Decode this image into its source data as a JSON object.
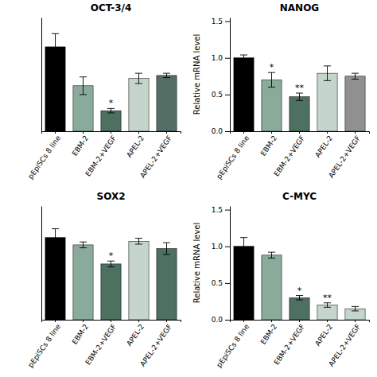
{
  "chart_data": [
    {
      "type": "bar",
      "title": "OCT-3/4",
      "categories": [
        "pEpiSCs 8 line",
        "EBM-2",
        "EBM-2+VEGF",
        "APEL-2",
        "APEL-2+VEGF"
      ],
      "values": [
        1.15,
        0.62,
        0.28,
        0.72,
        0.76
      ],
      "errors": [
        0.18,
        0.12,
        0.03,
        0.07,
        0.03
      ],
      "colors": [
        "#000000",
        "#8aab9b",
        "#4d7060",
        "#c5d5cb",
        "#546e65"
      ],
      "sig_labels": [
        null,
        null,
        "*",
        null,
        null
      ],
      "ylim": [
        0,
        1.55
      ],
      "yticks": [],
      "tick_labels": "x",
      "grid": false
    },
    {
      "type": "bar",
      "title": "NANOG",
      "ylabel": "Relative mRNA level",
      "categories": [
        "pEpiSCs 8 line",
        "EBM-2",
        "EBM-2+VEGF",
        "APEL-2",
        "APEL-2+VEGF"
      ],
      "values": [
        1.0,
        0.7,
        0.47,
        0.79,
        0.75
      ],
      "errors": [
        0.04,
        0.1,
        0.05,
        0.1,
        0.04
      ],
      "colors": [
        "#000000",
        "#8aab9b",
        "#4d7060",
        "#c5d5cb",
        "#909090"
      ],
      "sig_labels": [
        null,
        "*",
        "**",
        null,
        null
      ],
      "ylim": [
        0,
        1.55
      ],
      "yticks": [
        {
          "value": 0,
          "label": "0.0"
        },
        0.5,
        {
          "value": 1,
          "label": "1.0"
        },
        1.5
      ],
      "grid": false
    },
    {
      "type": "bar",
      "title": "SOX2",
      "categories": [
        "pEpiSCs 8 line",
        "EBM-2",
        "EBM-2+VEGF",
        "APEL-2",
        "APEL-2+VEGF"
      ],
      "values": [
        1.12,
        1.02,
        0.76,
        1.07,
        0.97
      ],
      "errors": [
        0.12,
        0.04,
        0.04,
        0.04,
        0.08
      ],
      "colors": [
        "#000000",
        "#8aab9b",
        "#4d7060",
        "#c5d5cb",
        "#4d7060"
      ],
      "sig_labels": [
        null,
        null,
        "*",
        null,
        null
      ],
      "ylim": [
        0,
        1.55
      ],
      "yticks": [],
      "tick_labels": "x",
      "grid": false
    },
    {
      "type": "bar",
      "title": "C-MYC",
      "ylabel": "Relative mRNA level",
      "categories": [
        "pEpiSCs 8 line",
        "EBM-2",
        "EBM-2+VEGF",
        "APEL-2",
        "APEL-2+VEGF"
      ],
      "values": [
        1.0,
        0.88,
        0.3,
        0.2,
        0.15
      ],
      "errors": [
        0.12,
        0.04,
        0.03,
        0.03,
        0.03
      ],
      "colors": [
        "#000000",
        "#8aab9b",
        "#4d7060",
        "#c5d5cb",
        "#c5d5cb"
      ],
      "sig_labels": [
        null,
        null,
        "*",
        "**",
        null
      ],
      "ylim": [
        0,
        1.55
      ],
      "yticks": [
        {
          "value": 0,
          "label": "0.0"
        },
        0.5,
        {
          "value": 1,
          "label": "1.0"
        },
        1.5
      ],
      "grid": false
    }
  ]
}
